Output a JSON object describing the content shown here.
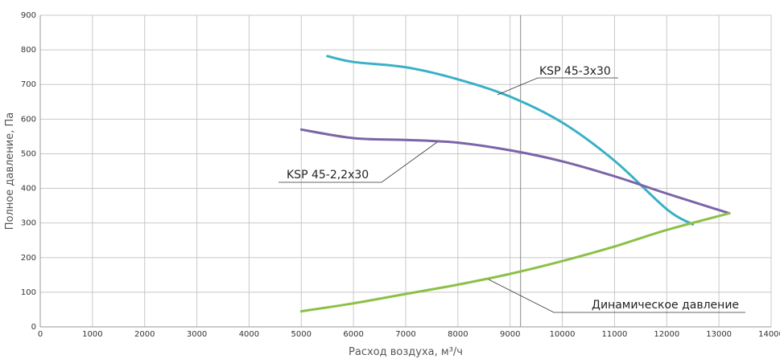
{
  "chart_data": {
    "type": "line",
    "title": "",
    "xlabel": "Расход воздуха, м³/ч",
    "ylabel": "Полное давление, Па",
    "xlim": [
      0,
      14000
    ],
    "ylim": [
      0,
      900
    ],
    "xticks": [
      0,
      1000,
      2000,
      3000,
      4000,
      5000,
      6000,
      7000,
      8000,
      9000,
      10000,
      11000,
      12000,
      13000,
      14000
    ],
    "yticks": [
      0,
      100,
      200,
      300,
      400,
      500,
      600,
      700,
      800,
      900
    ],
    "grid": true,
    "reference_line_x": 9200,
    "series": [
      {
        "name": "KSP 45-3x30",
        "color": "#3ab0c6",
        "x": [
          5500,
          6000,
          7000,
          8000,
          9000,
          10000,
          11000,
          12000,
          12500
        ],
        "y": [
          782,
          765,
          750,
          715,
          665,
          590,
          480,
          340,
          296
        ]
      },
      {
        "name": "KSP 45-2,2x30",
        "color": "#7b64a8",
        "x": [
          5000,
          6000,
          7000,
          8000,
          9000,
          10000,
          11000,
          12000,
          13200
        ],
        "y": [
          570,
          545,
          540,
          532,
          510,
          478,
          435,
          385,
          328
        ]
      },
      {
        "name": "Динамическое давление",
        "color": "#8cc046",
        "x": [
          5000,
          6000,
          7000,
          8000,
          9000,
          10000,
          11000,
          12000,
          13200
        ],
        "y": [
          45,
          68,
          95,
          122,
          153,
          190,
          232,
          280,
          328
        ]
      }
    ]
  }
}
